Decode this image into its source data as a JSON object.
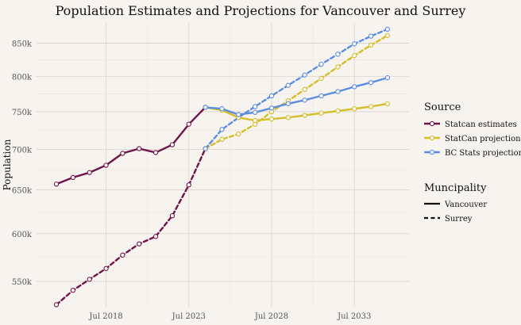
{
  "chart_data": {
    "type": "line",
    "title": "Population Estimates and Projections for Vancouver and Surrey",
    "ylabel": "Population",
    "xlabel": "",
    "x_ticks": [
      {
        "label": "Jul 2018",
        "value": 2018.5
      },
      {
        "label": "Jul 2023",
        "value": 2023.5
      },
      {
        "label": "Jul 2028",
        "value": 2028.5
      },
      {
        "label": "Jul 2033",
        "value": 2033.5
      }
    ],
    "y_ticks": [
      {
        "label": "550k",
        "value": 550000
      },
      {
        "label": "600k",
        "value": 600000
      },
      {
        "label": "650k",
        "value": 650000
      },
      {
        "label": "700k",
        "value": 700000
      },
      {
        "label": "750k",
        "value": 750000
      },
      {
        "label": "800k",
        "value": 800000
      },
      {
        "label": "850k",
        "value": 850000
      }
    ],
    "xlim": [
      2014.3,
      2036.8
    ],
    "ylim": [
      525000,
      882000
    ],
    "y_scale": "log",
    "grid": true,
    "legend_placement": "right",
    "legend": {
      "source_title": "Source",
      "sources": [
        {
          "key": "statcan_est",
          "label": "Statcan estimates",
          "color": "#6e1449"
        },
        {
          "key": "statcan_proj",
          "label": "StatCan projections",
          "color": "#d4be2c"
        },
        {
          "key": "bc_proj",
          "label": "BC Stats projections",
          "color": "#5b8ee0"
        }
      ],
      "muni_title": "Muncipality",
      "municipalities": [
        {
          "key": "vancouver",
          "label": "Vancouver",
          "line": "solid"
        },
        {
          "key": "surrey",
          "label": "Surrey",
          "line": "dashed"
        }
      ]
    },
    "series": [
      {
        "source": "statcan_est",
        "municipality": "vancouver",
        "x": [
          2015.5,
          2016.5,
          2017.5,
          2018.5,
          2019.5,
          2020.5,
          2021.5,
          2022.5,
          2023.5,
          2024.5
        ],
        "y": [
          657000,
          665000,
          671000,
          680000,
          695000,
          701000,
          696000,
          706000,
          733000,
          756000
        ]
      },
      {
        "source": "statcan_est",
        "municipality": "surrey",
        "x": [
          2015.5,
          2016.5,
          2017.5,
          2018.5,
          2019.5,
          2020.5,
          2021.5,
          2022.5,
          2023.5,
          2024.5
        ],
        "y": [
          527000,
          541000,
          552000,
          563000,
          577000,
          589000,
          597000,
          620000,
          656000,
          701000
        ]
      },
      {
        "source": "statcan_proj",
        "municipality": "vancouver",
        "x": [
          2024.5,
          2025.5,
          2026.5,
          2027.5,
          2028.5,
          2029.5,
          2030.5,
          2031.5,
          2032.5,
          2033.5,
          2034.5,
          2035.5
        ],
        "y": [
          756000,
          752000,
          742000,
          738000,
          740000,
          742000,
          745000,
          748000,
          751000,
          754000,
          757000,
          761000
        ]
      },
      {
        "source": "statcan_proj",
        "municipality": "surrey",
        "x": [
          2024.5,
          2025.5,
          2026.5,
          2027.5,
          2028.5,
          2029.5,
          2030.5,
          2031.5,
          2032.5,
          2033.5,
          2034.5,
          2035.5
        ],
        "y": [
          701000,
          713000,
          720000,
          733000,
          750000,
          765000,
          781000,
          797000,
          814000,
          831000,
          847000,
          862000
        ]
      },
      {
        "source": "bc_proj",
        "municipality": "vancouver",
        "x": [
          2024.5,
          2025.5,
          2026.5,
          2027.5,
          2028.5,
          2029.5,
          2030.5,
          2031.5,
          2032.5,
          2033.5,
          2034.5,
          2035.5
        ],
        "y": [
          756000,
          754000,
          746000,
          749000,
          755000,
          761000,
          766000,
          772000,
          778000,
          785000,
          791000,
          798000
        ]
      },
      {
        "source": "bc_proj",
        "municipality": "surrey",
        "x": [
          2024.5,
          2025.5,
          2026.5,
          2027.5,
          2028.5,
          2029.5,
          2030.5,
          2031.5,
          2032.5,
          2033.5,
          2034.5,
          2035.5
        ],
        "y": [
          701000,
          726000,
          742000,
          757000,
          772000,
          787000,
          802000,
          818000,
          833000,
          849000,
          861000,
          872000
        ]
      }
    ]
  }
}
